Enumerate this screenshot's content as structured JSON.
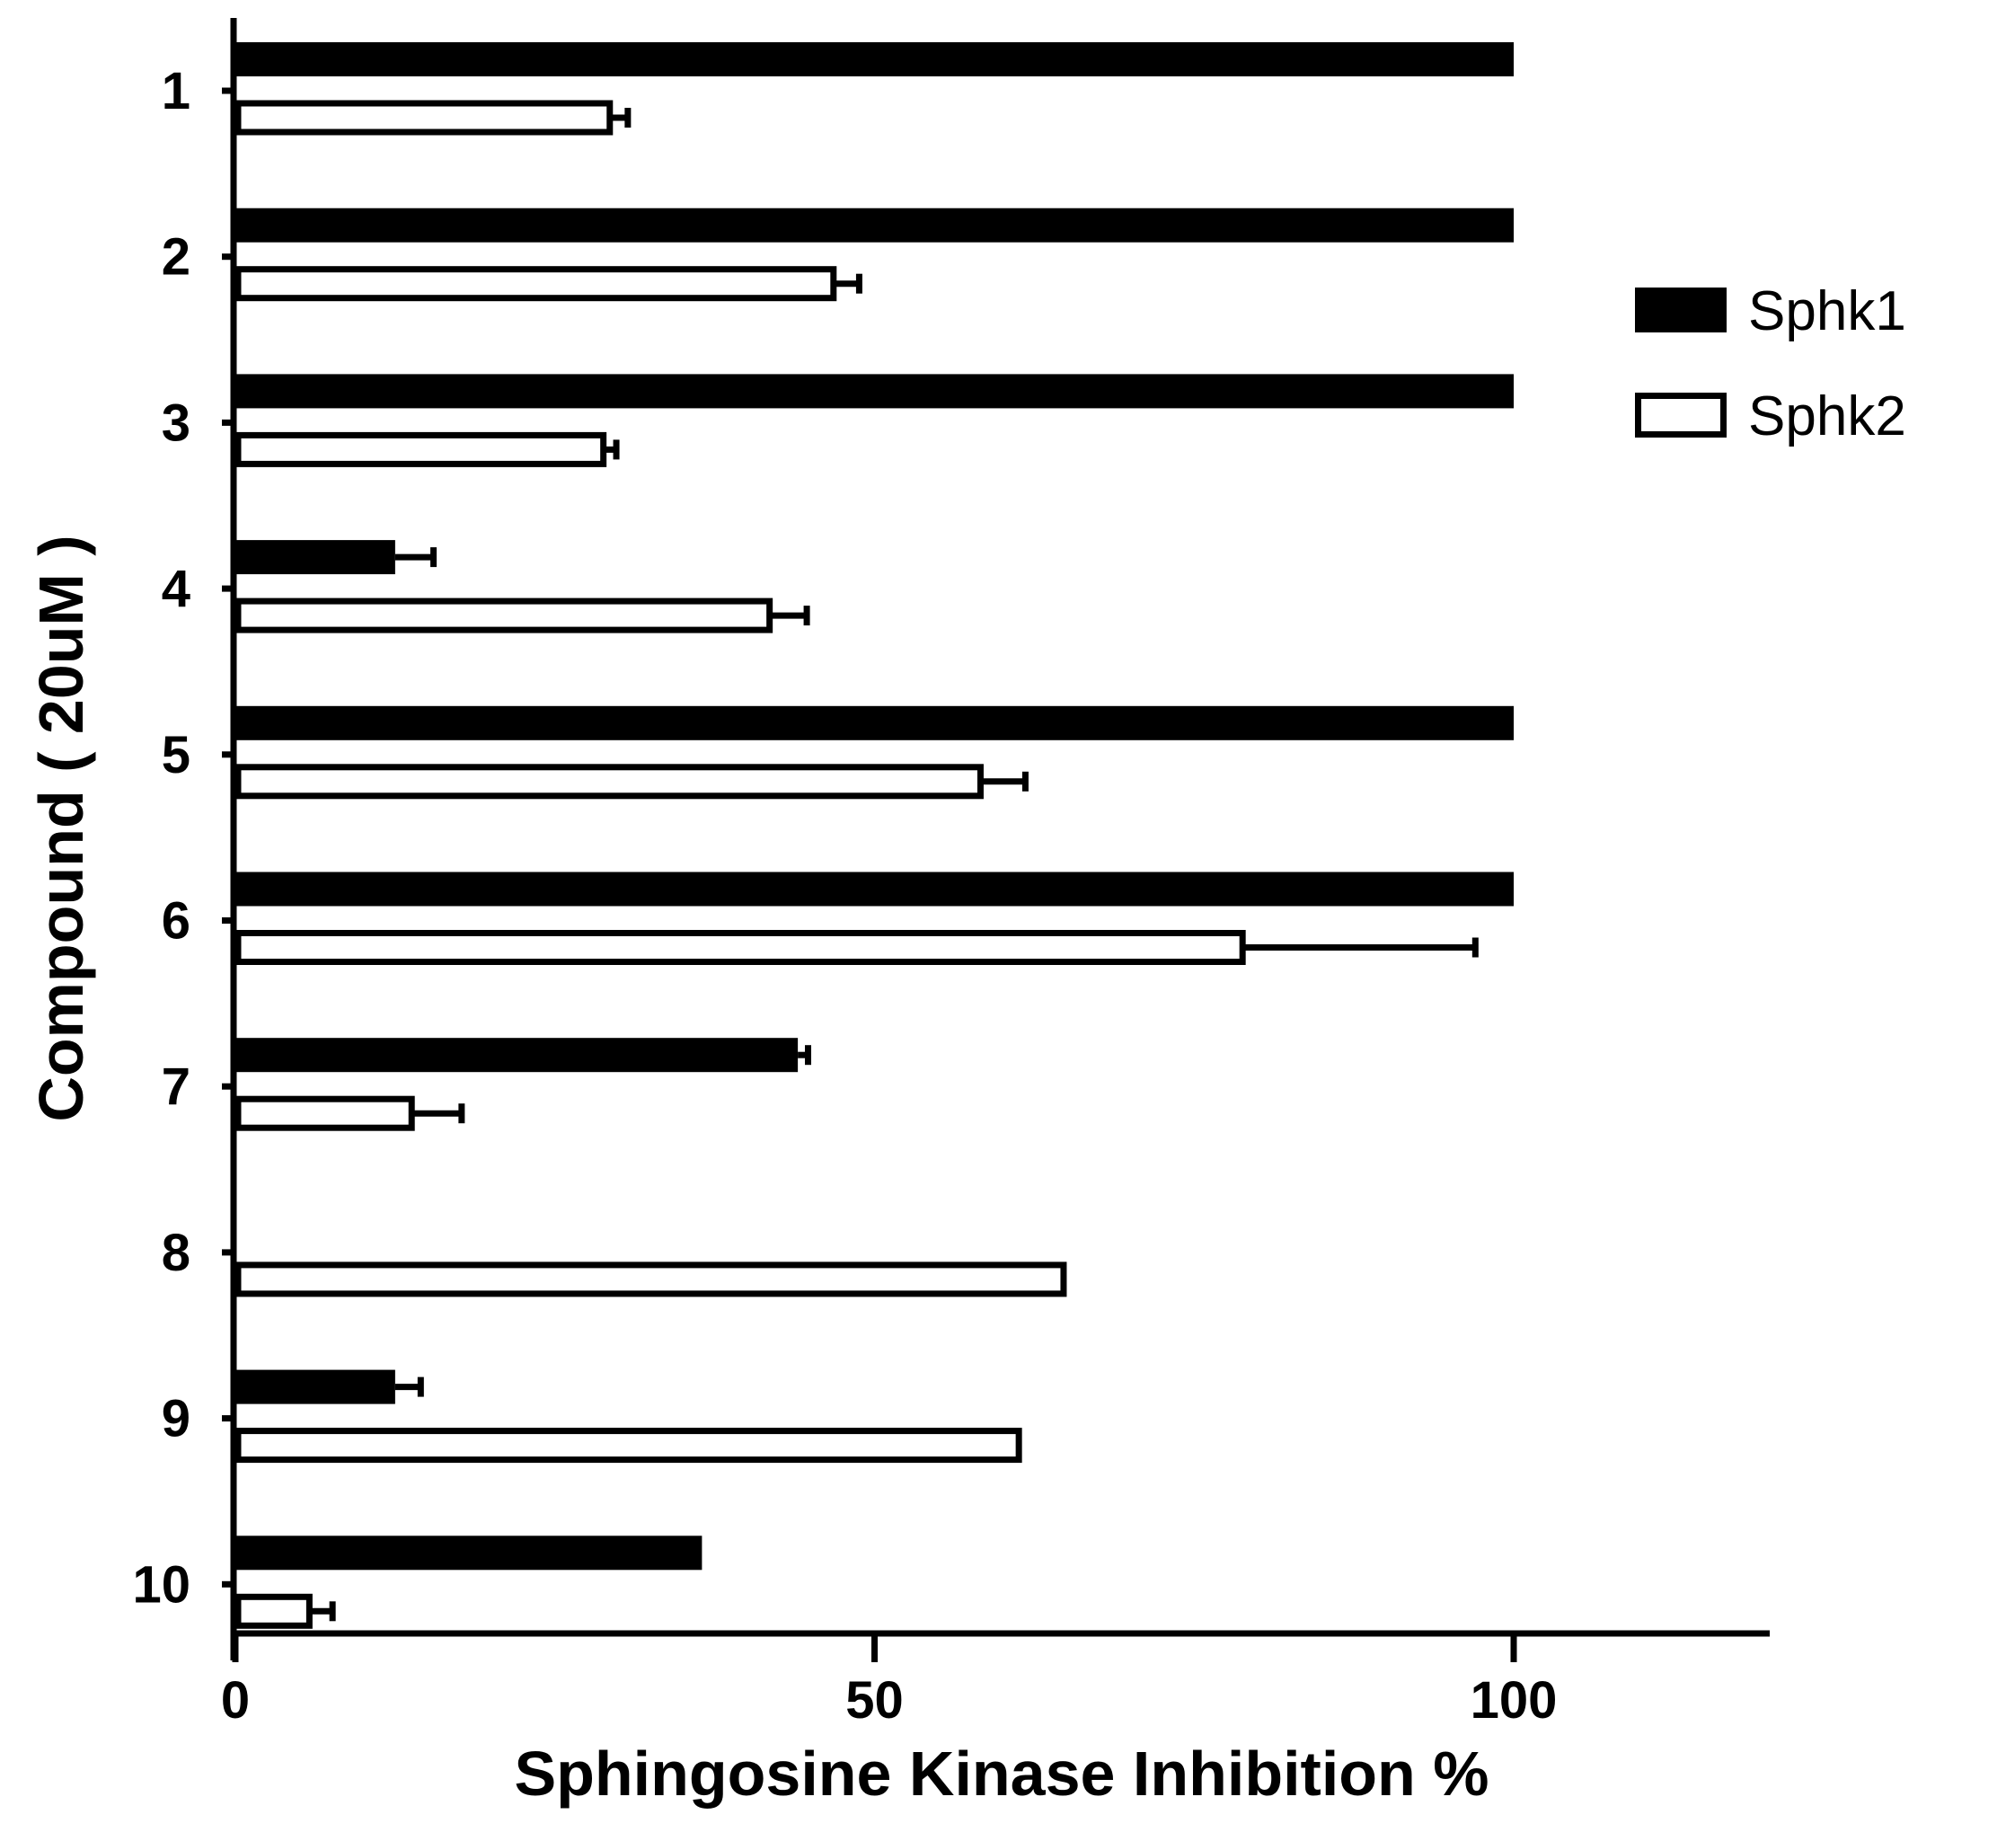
{
  "chart_data": {
    "type": "bar",
    "orientation": "horizontal",
    "categories": [
      "1",
      "2",
      "3",
      "4",
      "5",
      "6",
      "7",
      "8",
      "9",
      "10"
    ],
    "series": [
      {
        "name": "Sphk1",
        "fill": "#000000",
        "values": [
          100,
          100,
          100,
          12.5,
          100,
          100,
          44,
          0,
          12.5,
          36.5
        ],
        "errors": [
          0,
          0,
          0,
          3,
          0,
          0,
          0.8,
          0,
          2,
          0
        ]
      },
      {
        "name": "Sphk2",
        "fill": "#ffffff",
        "values": [
          29.5,
          47,
          29,
          42,
          58.5,
          79,
          14,
          65,
          61.5,
          6
        ],
        "errors": [
          1.2,
          1.8,
          0.8,
          2.7,
          3.3,
          18,
          3.7,
          0,
          0,
          1.6
        ]
      }
    ],
    "xlabel": "Sphingosine Kinase Inhibition %",
    "ylabel": "Compound ( 20uM )",
    "xlim": [
      0,
      120
    ],
    "xticks": [
      "0",
      "50",
      "100"
    ],
    "xtick_values": [
      0,
      50,
      100
    ],
    "grid": false,
    "legend_position": "right"
  }
}
